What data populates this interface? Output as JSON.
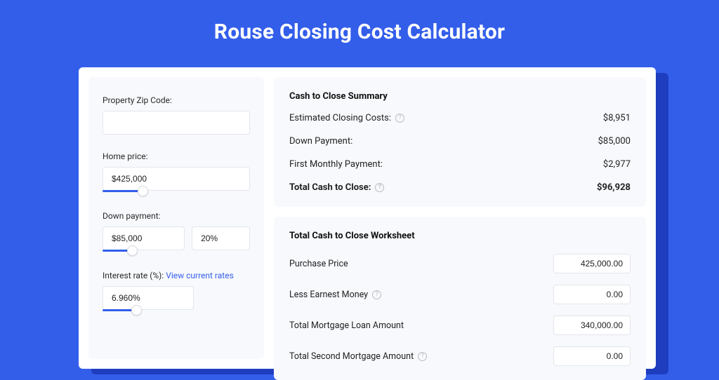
{
  "colors": {
    "page_bg": "#335eea",
    "shadow": "#1f3dbf",
    "card_bg": "#ffffff",
    "panel_bg": "#f7f9fc",
    "input_border": "#e3e6ea",
    "link": "#335eea",
    "text": "#222222",
    "help_ring": "#b8bcc2"
  },
  "title": "Rouse Closing Cost Calculator",
  "form": {
    "zip": {
      "label": "Property Zip Code:",
      "value": ""
    },
    "home_price": {
      "label": "Home price:",
      "value": "$425,000",
      "slider_fill_pct": 27,
      "thumb_pct": 27
    },
    "down_payment": {
      "label": "Down payment:",
      "amount": "$85,000",
      "percent": "20%",
      "slider_fill_pct": 32,
      "thumb_pct": 32
    },
    "interest_rate": {
      "label": "Interest rate (%): ",
      "link_text": "View current rates",
      "value": "6.960%",
      "slider_fill_pct": 37,
      "thumb_pct": 37
    }
  },
  "summary": {
    "title": "Cash to Close Summary",
    "rows": [
      {
        "label": "Estimated Closing Costs:",
        "value": "$8,951",
        "help": true
      },
      {
        "label": "Down Payment:",
        "value": "$85,000",
        "help": false
      },
      {
        "label": "First Monthly Payment:",
        "value": "$2,977",
        "help": false
      }
    ],
    "total": {
      "label": "Total Cash to Close:",
      "value": "$96,928",
      "help": true
    }
  },
  "worksheet": {
    "title": "Total Cash to Close Worksheet",
    "rows": [
      {
        "label": "Purchase Price",
        "value": "425,000.00",
        "help": false
      },
      {
        "label": "Less Earnest Money",
        "value": "0.00",
        "help": true
      },
      {
        "label": "Total Mortgage Loan Amount",
        "value": "340,000.00",
        "help": false
      },
      {
        "label": "Total Second Mortgage Amount",
        "value": "0.00",
        "help": true
      }
    ]
  }
}
